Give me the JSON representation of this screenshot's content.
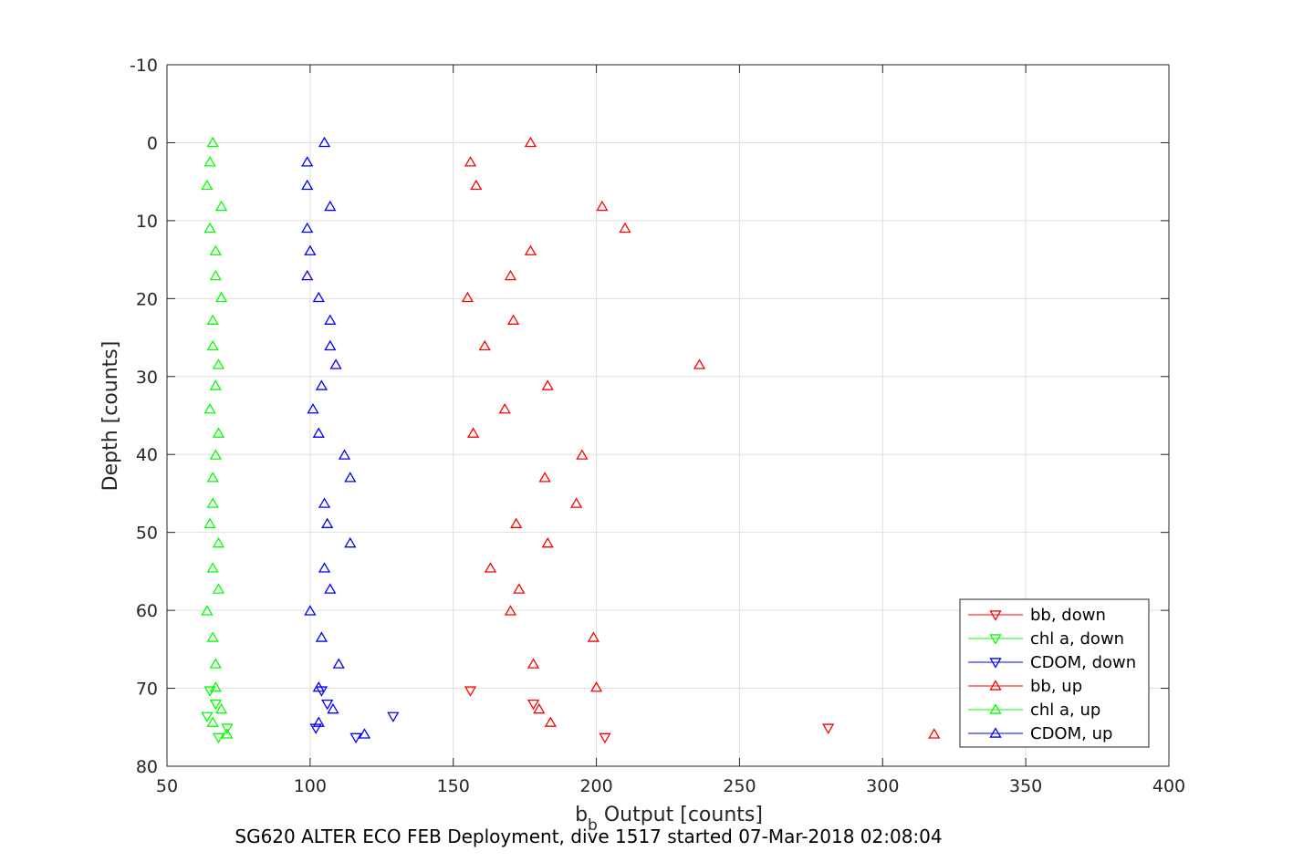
{
  "chart_data": {
    "type": "scatter",
    "caption": "SG620 ALTER ECO FEB Deployment, dive 1517 started 07-Mar-2018 02:08:04",
    "xlabel_main": "b",
    "xlabel_sub": "b",
    "xlabel_rest": " Output [counts]",
    "ylabel": "Depth [counts]",
    "xlim": [
      50,
      400
    ],
    "ylim": [
      -10,
      80
    ],
    "y_reversed": true,
    "grid": true,
    "xticks": [
      "50",
      "100",
      "150",
      "200",
      "250",
      "300",
      "350",
      "400"
    ],
    "yticks": [
      "-10",
      "0",
      "10",
      "20",
      "30",
      "40",
      "50",
      "60",
      "70",
      "80"
    ],
    "xtick_values": [
      50,
      100,
      150,
      200,
      250,
      300,
      350,
      400
    ],
    "ytick_values": [
      -10,
      0,
      10,
      20,
      30,
      40,
      50,
      60,
      70,
      80
    ],
    "legend_position": "bottom-right",
    "series": [
      {
        "name": "bb, down",
        "color": "#ff0000",
        "marker": "triangle-down",
        "x": [
          156,
          178,
          281,
          203
        ],
        "y": [
          70.3,
          72.0,
          75.1,
          76.3
        ]
      },
      {
        "name": "chl a, down",
        "color": "#00ff00",
        "marker": "triangle-down",
        "x": [
          65,
          67,
          64,
          71,
          68
        ],
        "y": [
          70.3,
          72.0,
          73.6,
          75.1,
          76.3
        ]
      },
      {
        "name": "CDOM, down",
        "color": "#0000ff",
        "marker": "triangle-down",
        "x": [
          104,
          106,
          129,
          102,
          116
        ],
        "y": [
          70.3,
          72.0,
          73.6,
          75.1,
          76.3
        ]
      },
      {
        "name": "bb, up",
        "color": "#ff0000",
        "marker": "triangle-up",
        "x": [
          318,
          184,
          180,
          200,
          178,
          199,
          170,
          173,
          163,
          183,
          172,
          193,
          182,
          195,
          157,
          168,
          183,
          236,
          161,
          171,
          155,
          170,
          177,
          210,
          202,
          158,
          156,
          177
        ],
        "y": [
          75.9,
          74.4,
          72.7,
          69.9,
          66.9,
          63.5,
          60.1,
          57.3,
          54.6,
          51.4,
          48.9,
          46.3,
          43.0,
          40.1,
          37.3,
          34.2,
          31.2,
          28.5,
          26.1,
          22.8,
          19.9,
          17.1,
          13.9,
          11.0,
          8.2,
          5.5,
          2.5,
          0.0
        ]
      },
      {
        "name": "chl a, up",
        "color": "#00ff00",
        "marker": "triangle-up",
        "x": [
          71,
          66,
          69,
          67,
          67,
          66,
          64,
          68,
          66,
          68,
          65,
          66,
          66,
          67,
          68,
          65,
          67,
          68,
          66,
          66,
          69,
          67,
          67,
          65,
          69,
          64,
          65,
          66
        ],
        "y": [
          75.9,
          74.4,
          72.7,
          69.9,
          66.9,
          63.5,
          60.1,
          57.3,
          54.6,
          51.4,
          48.9,
          46.3,
          43.0,
          40.1,
          37.3,
          34.2,
          31.2,
          28.5,
          26.1,
          22.8,
          19.9,
          17.1,
          13.9,
          11.0,
          8.2,
          5.5,
          2.5,
          0.0
        ]
      },
      {
        "name": "CDOM, up",
        "color": "#0000ff",
        "marker": "triangle-up",
        "x": [
          119,
          103,
          108,
          103,
          110,
          104,
          100,
          107,
          105,
          114,
          106,
          105,
          114,
          112,
          103,
          101,
          104,
          109,
          107,
          107,
          103,
          99,
          100,
          99,
          107,
          99,
          99,
          105
        ],
        "y": [
          75.9,
          74.4,
          72.7,
          69.9,
          66.9,
          63.5,
          60.1,
          57.3,
          54.6,
          51.4,
          48.9,
          46.3,
          43.0,
          40.1,
          37.3,
          34.2,
          31.2,
          28.5,
          26.1,
          22.8,
          19.9,
          17.1,
          13.9,
          11.0,
          8.2,
          5.5,
          2.5,
          0.0
        ]
      }
    ]
  }
}
